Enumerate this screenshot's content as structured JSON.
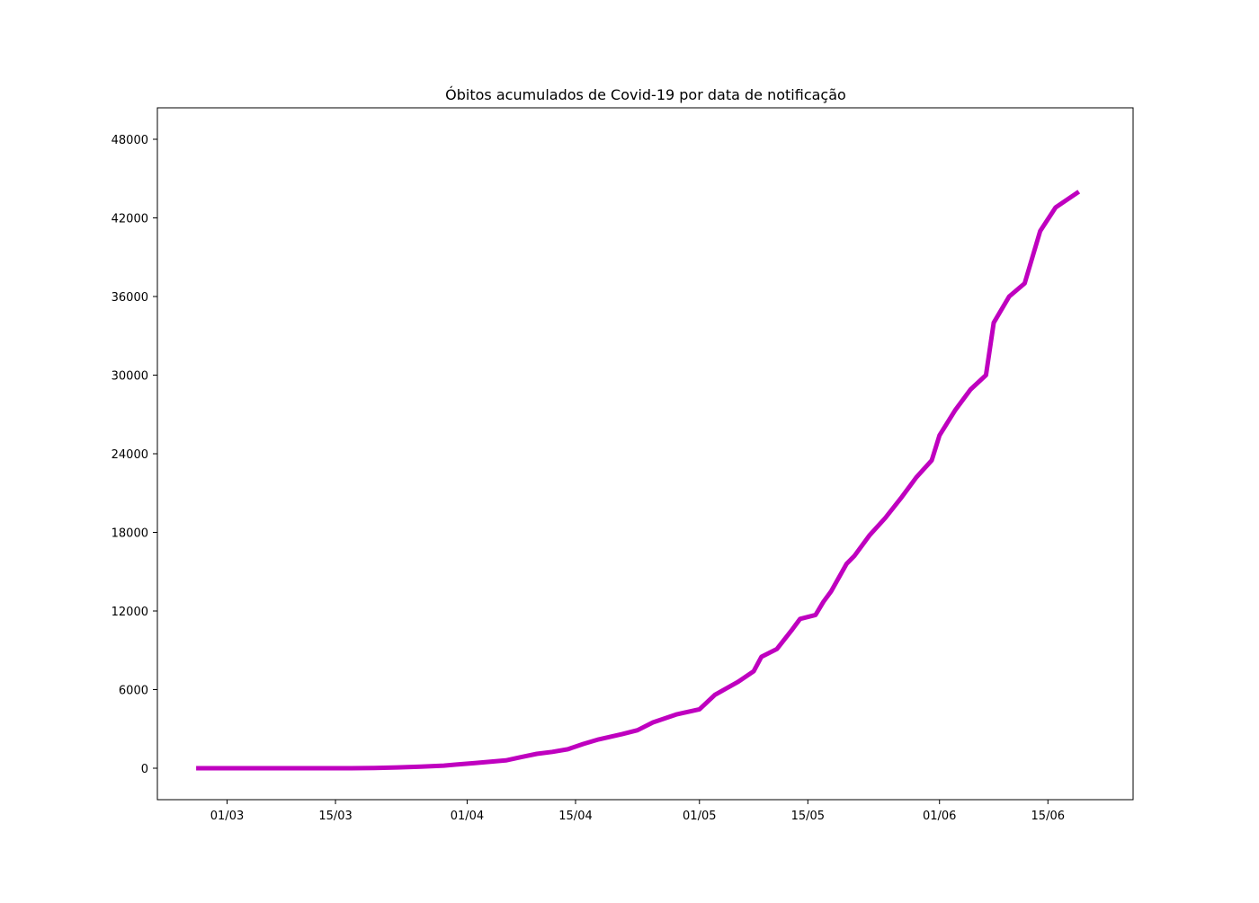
{
  "chart_data": {
    "type": "line",
    "title": "Óbitos acumulados de Covid-19 por data de notificação",
    "xlabel": "",
    "ylabel": "",
    "grid": false,
    "legend": "none",
    "x_axis": {
      "format": "DD/MM",
      "year_implied": 2020,
      "range": [
        "2020-02-21",
        "2020-06-26"
      ],
      "ticks": [
        "2020-03-01",
        "2020-03-15",
        "2020-04-01",
        "2020-04-15",
        "2020-05-01",
        "2020-05-15",
        "2020-06-01",
        "2020-06-15"
      ],
      "tick_labels": [
        "01/03",
        "15/03",
        "01/04",
        "15/04",
        "01/05",
        "15/05",
        "01/06",
        "15/06"
      ]
    },
    "y_axis": {
      "range": [
        -2400,
        50400
      ],
      "ticks": [
        0,
        6000,
        12000,
        18000,
        24000,
        30000,
        36000,
        42000,
        48000
      ],
      "tick_labels": [
        "0",
        "6000",
        "12000",
        "18000",
        "24000",
        "30000",
        "36000",
        "42000",
        "48000"
      ]
    },
    "series": [
      {
        "color": "#bf00bf",
        "x": [
          "2020-02-26",
          "2020-03-03",
          "2020-03-08",
          "2020-03-13",
          "2020-03-17",
          "2020-03-20",
          "2020-03-23",
          "2020-03-26",
          "2020-03-29",
          "2020-03-31",
          "2020-04-02",
          "2020-04-04",
          "2020-04-06",
          "2020-04-08",
          "2020-04-10",
          "2020-04-12",
          "2020-04-14",
          "2020-04-16",
          "2020-04-18",
          "2020-04-21",
          "2020-04-23",
          "2020-04-25",
          "2020-04-28",
          "2020-05-01",
          "2020-05-03",
          "2020-05-06",
          "2020-05-08",
          "2020-05-09",
          "2020-05-11",
          "2020-05-13",
          "2020-05-14",
          "2020-05-16",
          "2020-05-17",
          "2020-05-18",
          "2020-05-20",
          "2020-05-21",
          "2020-05-23",
          "2020-05-25",
          "2020-05-27",
          "2020-05-29",
          "2020-05-31",
          "2020-06-01",
          "2020-06-03",
          "2020-06-05",
          "2020-06-07",
          "2020-06-08",
          "2020-06-10",
          "2020-06-12",
          "2020-06-14",
          "2020-06-16",
          "2020-06-19"
        ],
        "y": [
          0,
          0,
          0,
          0,
          0,
          20,
          60,
          120,
          200,
          300,
          400,
          500,
          600,
          850,
          1100,
          1250,
          1450,
          1850,
          2200,
          2600,
          2900,
          3500,
          4100,
          4500,
          5600,
          6600,
          7400,
          8500,
          9100,
          10600,
          11400,
          11700,
          12700,
          13500,
          15600,
          16200,
          17800,
          19100,
          20600,
          22200,
          23500,
          25400,
          27300,
          28900,
          30000,
          34000,
          36000,
          37000,
          41000,
          42800,
          44000
        ]
      }
    ]
  }
}
